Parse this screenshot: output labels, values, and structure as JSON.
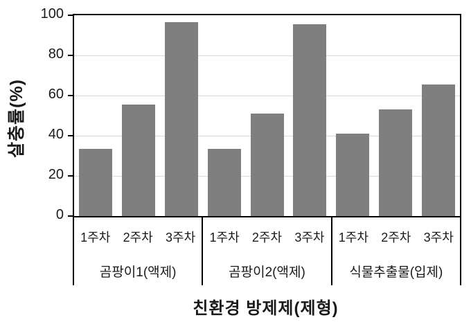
{
  "figure": {
    "background_color": "#ffffff"
  },
  "chart_data": {
    "type": "bar",
    "title": "",
    "xlabel": "친환경 방제제(제형)",
    "ylabel": "살충률(%)",
    "ylim": [
      0,
      100
    ],
    "yticks": [
      0,
      20,
      40,
      60,
      80,
      100
    ],
    "grid": true,
    "legend": "none",
    "bar_color": "#7f7f7f",
    "gridline_color": "#d9d9d9",
    "axis_color": "#000000",
    "categories_per_group": [
      "1주차",
      "2주차",
      "3주차"
    ],
    "groups": [
      {
        "label": "곰팡이1(액제)",
        "categories": [
          "1주차",
          "2주차",
          "3주차"
        ],
        "values": [
          33.5,
          55.5,
          96.5
        ]
      },
      {
        "label": "곰팡이2(액제)",
        "categories": [
          "1주차",
          "2주차",
          "3주차"
        ],
        "values": [
          33.5,
          51.0,
          95.5
        ]
      },
      {
        "label": "식물추출물(입제)",
        "categories": [
          "1주차",
          "2주차",
          "3주차"
        ],
        "values": [
          41.0,
          53.0,
          65.5
        ]
      }
    ]
  }
}
